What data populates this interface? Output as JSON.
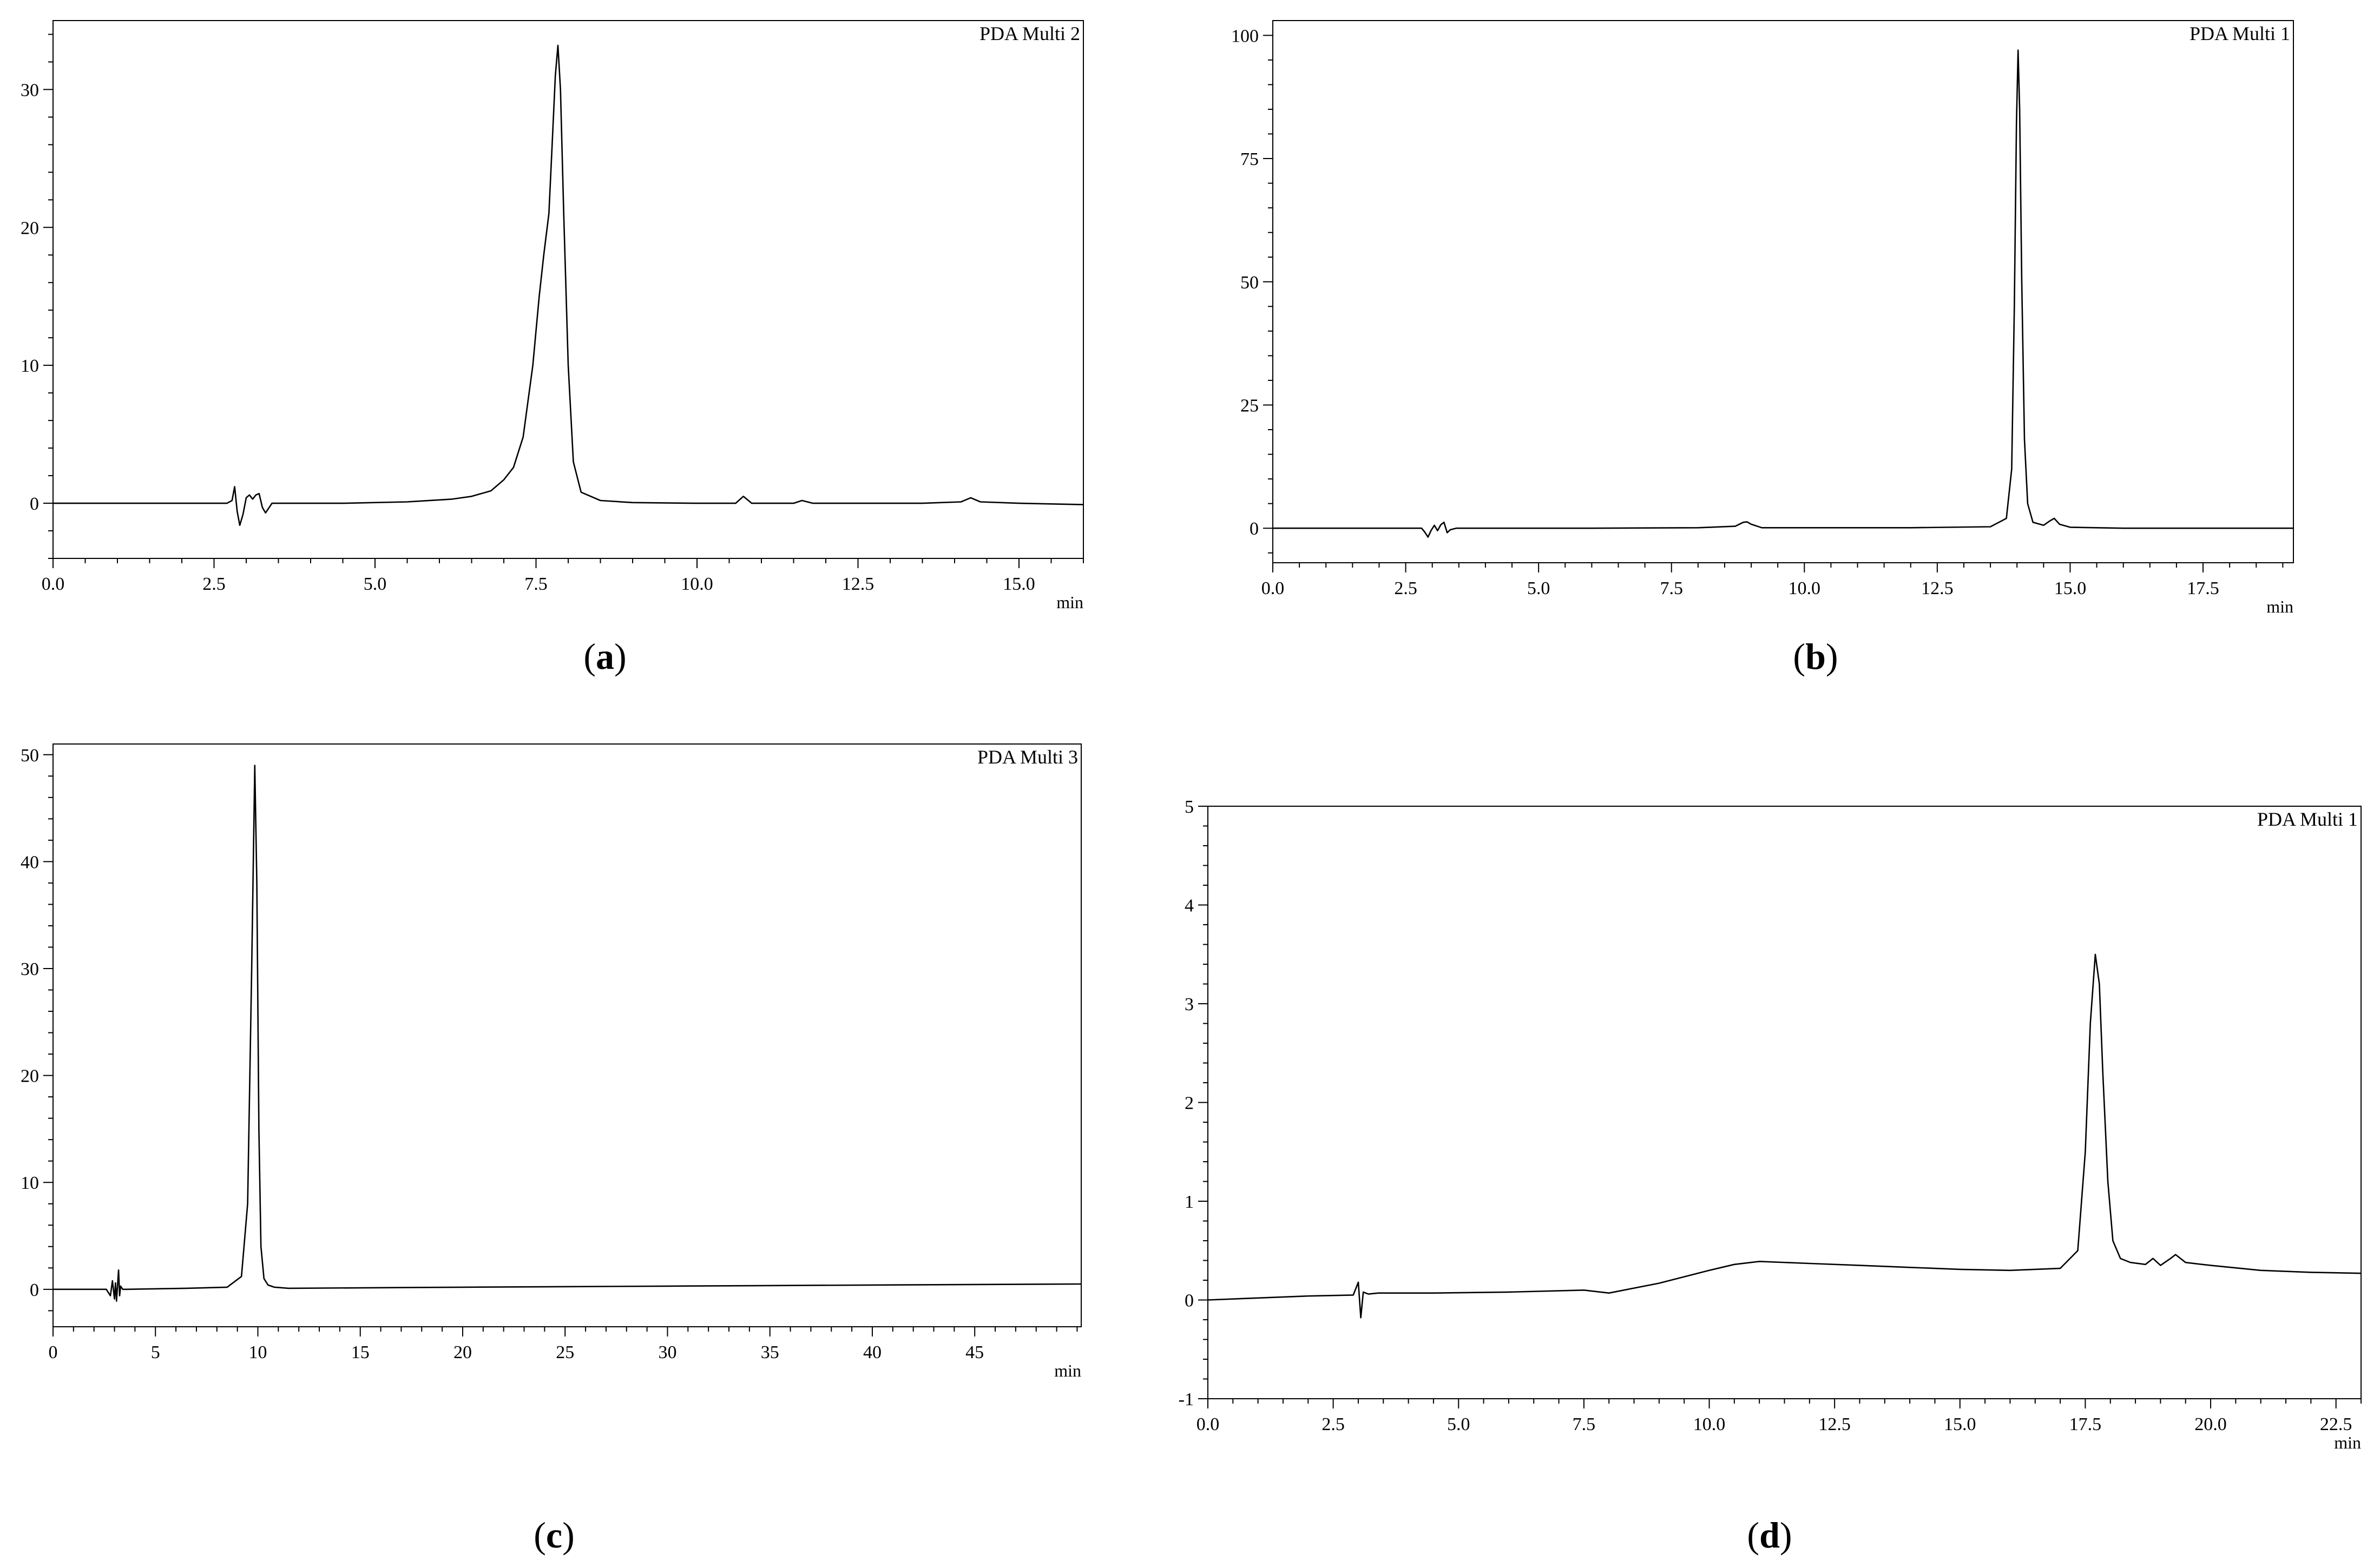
{
  "chart_data": [
    {
      "type": "line",
      "panel_label": "a",
      "corner_label": "PDA Multi 2",
      "x_unit": "min",
      "xlim": [
        0,
        16
      ],
      "ylim": [
        -4,
        35
      ],
      "x_ticks": [
        "0.0",
        "2.5",
        "5.0",
        "7.5",
        "10.0",
        "12.5",
        "15.0"
      ],
      "y_ticks": [
        "0",
        "10",
        "20",
        "30"
      ],
      "grid": false,
      "series": [
        {
          "x": [
            0,
            2.7,
            2.78,
            2.82,
            2.86,
            2.9,
            2.95,
            3.0,
            3.05,
            3.1,
            3.15,
            3.2,
            3.25,
            3.3,
            3.4,
            3.6,
            4.5,
            5.5,
            6.2,
            6.5,
            6.8,
            7.0,
            7.15,
            7.3,
            7.45,
            7.55,
            7.62,
            7.7,
            7.75,
            7.8,
            7.84,
            7.88,
            7.93,
            8.0,
            8.08,
            8.2,
            8.5,
            9.0,
            10.0,
            10.6,
            10.72,
            10.85,
            11.1,
            11.5,
            11.63,
            11.8,
            12.5,
            13.5,
            14.1,
            14.25,
            14.4,
            15.0,
            16.0
          ],
          "y": [
            0,
            0,
            0.2,
            1.2,
            -0.6,
            -1.6,
            -0.8,
            0.4,
            0.6,
            0.3,
            0.6,
            0.7,
            -0.3,
            -0.7,
            0,
            0,
            0,
            0.1,
            0.3,
            0.5,
            0.9,
            1.7,
            2.6,
            4.8,
            10,
            15,
            18,
            21,
            26,
            31,
            33.2,
            30,
            21,
            10,
            3,
            0.8,
            0.2,
            0.05,
            0,
            0,
            0.5,
            0,
            0,
            0,
            0.2,
            0,
            0,
            0,
            0.1,
            0.4,
            0.1,
            0,
            -0.1
          ]
        }
      ]
    },
    {
      "type": "line",
      "panel_label": "b",
      "corner_label": "PDA Multi 1",
      "x_unit": "min",
      "xlim": [
        0,
        19.2
      ],
      "ylim": [
        -7,
        103
      ],
      "x_ticks": [
        "0.0",
        "2.5",
        "5.0",
        "7.5",
        "10.0",
        "12.5",
        "15.0",
        "17.5"
      ],
      "y_ticks": [
        "0",
        "25",
        "50",
        "75",
        "100"
      ],
      "grid": false,
      "series": [
        {
          "x": [
            0,
            2.8,
            2.86,
            2.92,
            2.98,
            3.04,
            3.1,
            3.16,
            3.22,
            3.28,
            3.34,
            3.45,
            4.0,
            6.0,
            8.0,
            8.7,
            8.85,
            8.92,
            9.0,
            9.2,
            10.0,
            12.0,
            13.5,
            13.8,
            13.9,
            13.95,
            13.99,
            14.02,
            14.05,
            14.09,
            14.14,
            14.2,
            14.3,
            14.5,
            14.62,
            14.7,
            14.8,
            15.0,
            16.0,
            19.2
          ],
          "y": [
            0,
            0,
            -0.8,
            -1.8,
            -0.4,
            0.6,
            -0.5,
            0.7,
            1.2,
            -0.9,
            -0.3,
            0,
            0,
            0,
            0.1,
            0.4,
            1.2,
            1.3,
            0.8,
            0.1,
            0.1,
            0.1,
            0.3,
            2,
            12,
            45,
            82,
            97,
            85,
            50,
            18,
            5,
            1.2,
            0.6,
            1.5,
            2,
            0.8,
            0.2,
            0,
            0
          ]
        }
      ]
    },
    {
      "type": "line",
      "panel_label": "c",
      "corner_label": "PDA Multi 3",
      "x_unit": "min",
      "xlim": [
        0,
        50.2
      ],
      "ylim": [
        -3.5,
        51
      ],
      "x_ticks": [
        "0",
        "5",
        "10",
        "15",
        "20",
        "25",
        "30",
        "35",
        "40",
        "45"
      ],
      "y_ticks": [
        "0",
        "10",
        "20",
        "30",
        "40",
        "50"
      ],
      "grid": false,
      "series": [
        {
          "x": [
            0,
            2.6,
            2.8,
            2.9,
            3.0,
            3.05,
            3.1,
            3.2,
            3.25,
            3.3,
            3.4,
            3.6,
            6.5,
            8.5,
            9.2,
            9.5,
            9.7,
            9.85,
            9.95,
            10.05,
            10.15,
            10.3,
            10.5,
            10.8,
            11.5,
            20,
            30,
            40,
            50.2
          ],
          "y": [
            0,
            0,
            -0.6,
            0.8,
            -0.9,
            0.6,
            -1.1,
            1.8,
            -0.6,
            0.3,
            0,
            0,
            0.1,
            0.2,
            1.2,
            8,
            30,
            49,
            38,
            15,
            4,
            1,
            0.4,
            0.2,
            0.1,
            0.2,
            0.3,
            0.4,
            0.5
          ]
        }
      ]
    },
    {
      "type": "line",
      "panel_label": "d",
      "corner_label": "PDA Multi 1",
      "x_unit": "min",
      "xlim": [
        0,
        23
      ],
      "ylim": [
        -1,
        5
      ],
      "x_ticks": [
        "0.0",
        "2.5",
        "5.0",
        "7.5",
        "10.0",
        "12.5",
        "15.0",
        "17.5",
        "20.0",
        "22.5"
      ],
      "y_ticks": [
        "-1",
        "0",
        "1",
        "2",
        "3",
        "4",
        "5"
      ],
      "grid": false,
      "series": [
        {
          "x": [
            0,
            1.0,
            2.0,
            2.9,
            3.0,
            3.05,
            3.1,
            3.2,
            3.4,
            4.5,
            6.0,
            7.5,
            8.0,
            9.0,
            10.0,
            10.5,
            11.0,
            12.0,
            13.0,
            14.0,
            15.0,
            16.0,
            17.0,
            17.35,
            17.5,
            17.6,
            17.7,
            17.78,
            17.85,
            17.95,
            18.05,
            18.2,
            18.4,
            18.7,
            18.85,
            19.0,
            19.2,
            19.3,
            19.5,
            20.0,
            21.0,
            22.0,
            23.0
          ],
          "y": [
            0,
            0.02,
            0.04,
            0.05,
            0.18,
            -0.18,
            0.08,
            0.06,
            0.07,
            0.07,
            0.08,
            0.1,
            0.07,
            0.17,
            0.3,
            0.36,
            0.39,
            0.37,
            0.35,
            0.33,
            0.31,
            0.3,
            0.32,
            0.5,
            1.5,
            2.8,
            3.5,
            3.2,
            2.3,
            1.2,
            0.6,
            0.42,
            0.38,
            0.36,
            0.42,
            0.35,
            0.42,
            0.46,
            0.38,
            0.35,
            0.3,
            0.28,
            0.27
          ]
        }
      ]
    }
  ]
}
